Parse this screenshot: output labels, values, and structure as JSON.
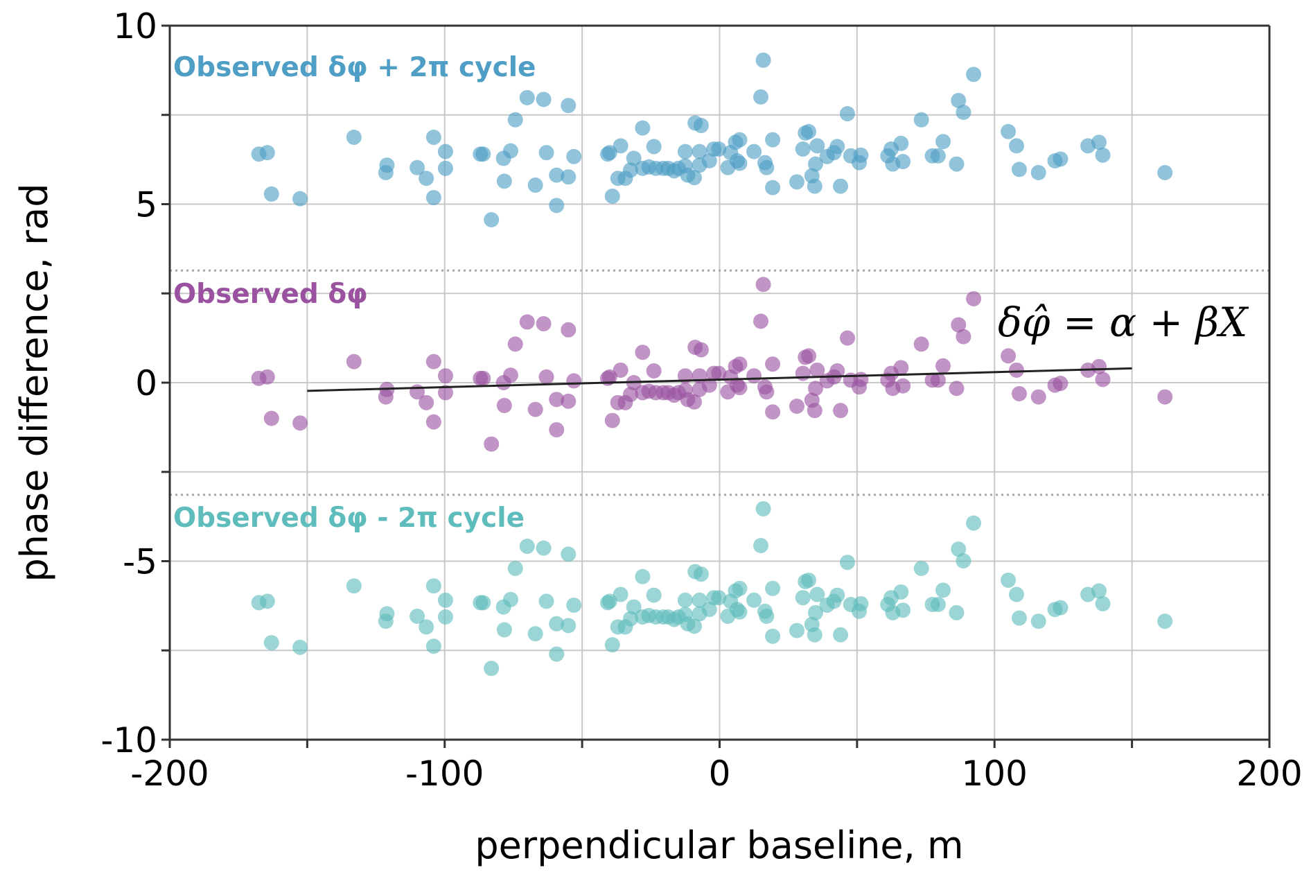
{
  "chart_data": {
    "type": "scatter",
    "title": "",
    "xlabel": "perpendicular baseline, m",
    "ylabel": "phase difference, rad",
    "xlim": [
      -200,
      200
    ],
    "ylim": [
      -10,
      10
    ],
    "xticks": [
      -200,
      -100,
      0,
      100,
      200
    ],
    "xtick_labels": [
      "-200",
      "-100",
      "0",
      "100",
      "200"
    ],
    "yticks": [
      -10,
      -5,
      0,
      5,
      10
    ],
    "ytick_labels": [
      "-10",
      "-5",
      "0",
      "5",
      "10"
    ],
    "x_gridlines": [
      -200,
      -150,
      -100,
      -50,
      0,
      50,
      100,
      150,
      200
    ],
    "y_gridlines": [
      -10,
      -7.5,
      -5,
      -2.5,
      0,
      2.5,
      5,
      7.5,
      10
    ],
    "grid": true,
    "reference_lines": [
      {
        "name": "plus-pi",
        "y": 3.14159,
        "style": "dotted",
        "color": "#a8a8a8"
      },
      {
        "name": "minus-pi",
        "y": -3.14159,
        "style": "dotted",
        "color": "#a8a8a8"
      }
    ],
    "fit_line": {
      "label": "δφ̂ = α + βX",
      "x": [
        -150,
        150
      ],
      "y": [
        -0.23,
        0.4
      ],
      "color": "#222222"
    },
    "annotations": [
      {
        "text": "Observed δφ + 2π cycle",
        "series": "plus",
        "color": "#4e9ec5"
      },
      {
        "text": "Observed δφ",
        "series": "observed",
        "color": "#9a52a0"
      },
      {
        "text": "Observed δφ - 2π cycle",
        "series": "minus",
        "color": "#5fbcbc"
      }
    ],
    "observed_x": [
      -167.6,
      -164.5,
      -163,
      -152.6,
      -133,
      -121.4,
      -121,
      -110,
      -106.7,
      -104,
      -104,
      -99.7,
      -99.7,
      -87,
      -86,
      -83,
      -78.6,
      -78.3,
      -76,
      -74.3,
      -70,
      -67,
      -64,
      -63,
      -59.3,
      -59.3,
      -55,
      -55,
      -53,
      -40.7,
      -40,
      -39,
      -37,
      -36,
      -34.3,
      -32.4,
      -31.2,
      -28,
      -28,
      -25.7,
      -23.9,
      -23.2,
      -20.5,
      -18.7,
      -16.5,
      -15,
      -12.5,
      -12.5,
      -11.6,
      -9.2,
      -8.9,
      -6.7,
      -7.3,
      -7.3,
      -3.7,
      -2.1,
      -0.3,
      3,
      4,
      5.8,
      6.4,
      7.3,
      7.3,
      12.5,
      15,
      15.9,
      16.5,
      17.1,
      19.3,
      19.3,
      28.1,
      30.3,
      31.2,
      32.4,
      33.6,
      34.6,
      34.9,
      35.5,
      39.1,
      41.6,
      42.8,
      44,
      46.5,
      47.7,
      50.8,
      51.4,
      61.2,
      62.4,
      63,
      66,
      66.7,
      73.4,
      77.4,
      79.5,
      81.3,
      86.2,
      86.9,
      88.7,
      92.4,
      105,
      108,
      109,
      116,
      122,
      124,
      134,
      138,
      139.4,
      162
    ],
    "observed_y": [
      0.12,
      0.16,
      -1.0,
      -1.13,
      0.59,
      -0.4,
      -0.19,
      -0.26,
      -0.56,
      0.59,
      -1.1,
      0.19,
      -0.28,
      0.12,
      0.12,
      -1.72,
      0,
      -0.64,
      0.21,
      1.08,
      1.7,
      -0.75,
      1.65,
      0.16,
      -0.47,
      -1.32,
      1.48,
      -0.52,
      0.05,
      0.12,
      0.16,
      -1.06,
      -0.56,
      0.35,
      -0.56,
      -0.33,
      0,
      0.85,
      -0.28,
      -0.24,
      0.33,
      -0.28,
      -0.28,
      -0.28,
      -0.35,
      -0.28,
      0.19,
      -0.21,
      -0.47,
      -0.54,
      0.99,
      0.92,
      0.19,
      -0.19,
      -0.07,
      0.26,
      0.26,
      -0.26,
      0.16,
      0.45,
      -0.07,
      0.52,
      -0.14,
      0.19,
      1.72,
      2.75,
      -0.12,
      -0.26,
      -0.82,
      0.52,
      -0.66,
      0.26,
      0.71,
      0.75,
      -0.49,
      -0.78,
      -0.16,
      0.35,
      0.05,
      0.16,
      0.33,
      -0.78,
      1.25,
      0.07,
      -0.12,
      0.09,
      0.07,
      0.26,
      -0.16,
      0.42,
      -0.09,
      1.08,
      0.07,
      0.07,
      0.47,
      -0.16,
      1.62,
      1.29,
      2.35,
      0.75,
      0.35,
      -0.31,
      -0.4,
      -0.07,
      -0.02,
      0.35,
      0.45,
      0.09,
      -0.4
    ],
    "series": [
      {
        "name": "Observed δφ + 2π cycle",
        "key": "plus",
        "offset": 6.28319,
        "color": "#4e9ec5"
      },
      {
        "name": "Observed δφ",
        "key": "observed",
        "offset": 0,
        "color": "#9a52a0"
      },
      {
        "name": "Observed δφ - 2π cycle",
        "key": "minus",
        "offset": -6.28319,
        "color": "#5fbcbc"
      }
    ]
  }
}
